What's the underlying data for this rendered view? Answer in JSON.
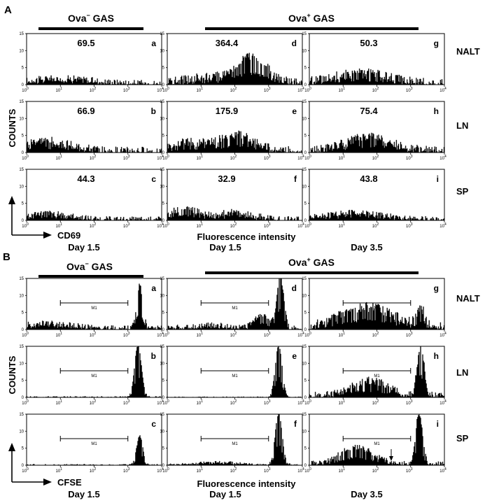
{
  "figure": {
    "panel_A": {
      "letter": "A",
      "groups": [
        {
          "label_main": "Ova",
          "label_sup": "−",
          "label_rest": " GAS"
        },
        {
          "label_main": "Ova",
          "label_sup": "+",
          "label_rest": " GAS"
        }
      ],
      "ylabel": "COUNTS",
      "axis_key": "CD69",
      "xlabel": "Fluorescence intensity",
      "days": [
        "Day 1.5",
        "Day 1.5",
        "Day 3.5"
      ],
      "rows": [
        "NALT",
        "LN",
        "SP"
      ],
      "plots": [
        {
          "id": "a",
          "value": "69.5"
        },
        {
          "id": "d",
          "value": "364.4"
        },
        {
          "id": "g",
          "value": "50.3"
        },
        {
          "id": "b",
          "value": "66.9"
        },
        {
          "id": "e",
          "value": "175.9"
        },
        {
          "id": "h",
          "value": "75.4"
        },
        {
          "id": "c",
          "value": "44.3"
        },
        {
          "id": "f",
          "value": "32.9"
        },
        {
          "id": "i",
          "value": "43.8"
        }
      ]
    },
    "panel_B": {
      "letter": "B",
      "groups": [
        {
          "label_main": "Ova",
          "label_sup": "−",
          "label_rest": " GAS"
        },
        {
          "label_main": "Ova",
          "label_sup": "+",
          "label_rest": " GAS"
        }
      ],
      "ylabel": "COUNTS",
      "axis_key": "CFSE",
      "xlabel": "Fluorescence intensity",
      "days": [
        "Day 1.5",
        "Day 1.5",
        "Day 3.5"
      ],
      "rows": [
        "NALT",
        "LN",
        "SP"
      ],
      "gate_label": "M1",
      "plots": [
        {
          "id": "a"
        },
        {
          "id": "d"
        },
        {
          "id": "g"
        },
        {
          "id": "b"
        },
        {
          "id": "e"
        },
        {
          "id": "h"
        },
        {
          "id": "c"
        },
        {
          "id": "f"
        },
        {
          "id": "i"
        }
      ]
    },
    "axes": {
      "x_ticks": [
        "10",
        "10",
        "10",
        "10",
        "10"
      ],
      "x_tick_exponents": [
        "0",
        "1",
        "2",
        "3",
        "4"
      ],
      "y_ticks": [
        "0",
        "5",
        "10",
        "15"
      ]
    }
  },
  "chart_data": [
    {
      "type": "histogram",
      "panel": "A",
      "x_scale": "log",
      "xlim": [
        1,
        10000
      ],
      "ylim": [
        0,
        15
      ],
      "plots": [
        {
          "id": "a",
          "row": "NALT",
          "group": "Ova- GAS",
          "day": "Day 1.5",
          "label": "69.5",
          "shape": [
            {
              "center": 1.0,
              "height": 1.5,
              "width": 0.9
            }
          ],
          "noise": 1.2
        },
        {
          "id": "d",
          "row": "NALT",
          "group": "Ova+ GAS",
          "day": "Day 1.5",
          "label": "364.4",
          "shape": [
            {
              "center": 2.5,
              "height": 7.5,
              "width": 0.45
            },
            {
              "center": 1.2,
              "height": 1.6,
              "width": 0.7
            }
          ],
          "noise": 1.6
        },
        {
          "id": "g",
          "row": "NALT",
          "group": "Ova+ GAS",
          "day": "Day 3.5",
          "label": "50.3",
          "shape": [
            {
              "center": 1.5,
              "height": 3.2,
              "width": 0.8
            }
          ],
          "noise": 1.6
        },
        {
          "id": "b",
          "row": "LN",
          "group": "Ova- GAS",
          "day": "Day 1.5",
          "label": "66.9",
          "shape": [
            {
              "center": 0.6,
              "height": 3.0,
              "width": 0.7
            }
          ],
          "noise": 1.5
        },
        {
          "id": "e",
          "row": "LN",
          "group": "Ova+ GAS",
          "day": "Day 1.5",
          "label": "175.9",
          "shape": [
            {
              "center": 2.1,
              "height": 4.5,
              "width": 0.5
            },
            {
              "center": 0.7,
              "height": 2.5,
              "width": 0.6
            }
          ],
          "noise": 1.6
        },
        {
          "id": "h",
          "row": "LN",
          "group": "Ova+ GAS",
          "day": "Day 3.5",
          "label": "75.4",
          "shape": [
            {
              "center": 1.8,
              "height": 4.2,
              "width": 0.7
            }
          ],
          "noise": 1.6
        },
        {
          "id": "c",
          "row": "SP",
          "group": "Ova- GAS",
          "day": "Day 1.5",
          "label": "44.3",
          "shape": [
            {
              "center": 0.6,
              "height": 1.8,
              "width": 0.7
            }
          ],
          "noise": 1.0
        },
        {
          "id": "f",
          "row": "SP",
          "group": "Ova+ GAS",
          "day": "Day 1.5",
          "label": "32.9",
          "shape": [
            {
              "center": 0.5,
              "height": 3.0,
              "width": 0.45
            },
            {
              "center": 2.0,
              "height": 2.0,
              "width": 0.5
            }
          ],
          "noise": 1.2
        },
        {
          "id": "i",
          "row": "SP",
          "group": "Ova+ GAS",
          "day": "Day 3.5",
          "label": "43.8",
          "shape": [
            {
              "center": 1.3,
              "height": 2.0,
              "width": 0.8
            }
          ],
          "noise": 1.1
        }
      ]
    },
    {
      "type": "histogram",
      "panel": "B",
      "x_scale": "log",
      "xlim": [
        1,
        10000
      ],
      "ylim": [
        0,
        15
      ],
      "gate": {
        "label": "M1",
        "from": 10,
        "to": 1000
      },
      "plots": [
        {
          "id": "a",
          "row": "NALT",
          "group": "Ova- GAS",
          "day": "Day 1.5",
          "shape": [
            {
              "center": 3.35,
              "height": 12.5,
              "width": 0.09
            },
            {
              "center": 0.6,
              "height": 1.5,
              "width": 0.8
            }
          ],
          "noise": 1.0
        },
        {
          "id": "d",
          "row": "NALT",
          "group": "Ova+ GAS",
          "day": "Day 1.5",
          "shape": [
            {
              "center": 3.35,
              "height": 15,
              "width": 0.1
            },
            {
              "center": 2.8,
              "height": 4.0,
              "width": 0.22
            },
            {
              "center": 1.2,
              "height": 1.0,
              "width": 0.6
            }
          ],
          "noise": 1.0
        },
        {
          "id": "g",
          "row": "NALT",
          "group": "Ova+ GAS",
          "day": "Day 3.5",
          "shape": [
            {
              "center": 1.7,
              "height": 6.0,
              "width": 0.8
            },
            {
              "center": 3.3,
              "height": 5.0,
              "width": 0.12
            }
          ],
          "noise": 1.8
        },
        {
          "id": "b",
          "row": "LN",
          "group": "Ova- GAS",
          "day": "Day 1.5",
          "shape": [
            {
              "center": 3.3,
              "height": 15,
              "width": 0.1
            }
          ],
          "noise": 0.3
        },
        {
          "id": "e",
          "row": "LN",
          "group": "Ova+ GAS",
          "day": "Day 1.5",
          "shape": [
            {
              "center": 3.3,
              "height": 15,
              "width": 0.1
            }
          ],
          "noise": 0.2
        },
        {
          "id": "h",
          "row": "LN",
          "group": "Ova+ GAS",
          "day": "Day 3.5",
          "shape": [
            {
              "center": 3.3,
              "height": 15,
              "width": 0.1
            },
            {
              "center": 1.8,
              "height": 4.5,
              "width": 0.55
            }
          ],
          "noise": 1.4
        },
        {
          "id": "c",
          "row": "SP",
          "group": "Ova- GAS",
          "day": "Day 1.5",
          "shape": [
            {
              "center": 3.35,
              "height": 8.5,
              "width": 0.09
            }
          ],
          "noise": 0.3
        },
        {
          "id": "f",
          "row": "SP",
          "group": "Ova+ GAS",
          "day": "Day 1.5",
          "shape": [
            {
              "center": 3.3,
              "height": 15,
              "width": 0.1
            },
            {
              "center": 1.5,
              "height": 0.8,
              "width": 0.6
            }
          ],
          "noise": 0.4
        },
        {
          "id": "i",
          "row": "SP",
          "group": "Ova+ GAS",
          "day": "Day 3.5",
          "shape": [
            {
              "center": 3.25,
              "height": 15,
              "width": 0.1
            },
            {
              "center": 1.4,
              "height": 5.0,
              "width": 0.5
            }
          ],
          "noise": 1.0
        }
      ]
    }
  ]
}
